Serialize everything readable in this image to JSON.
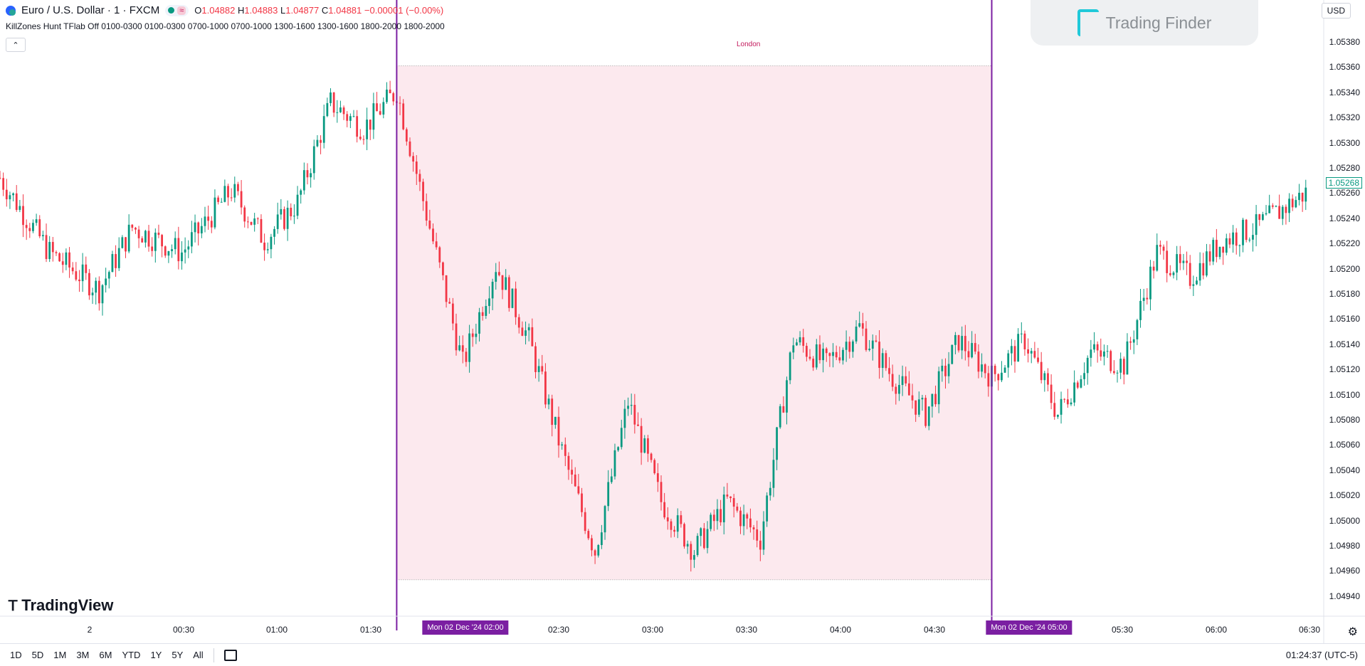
{
  "header": {
    "symbol": "Euro / U.S. Dollar · 1 · FXCM",
    "wave_icon": "≈",
    "ohlc": {
      "o_label": "O",
      "o": "1.04882",
      "h_label": "H",
      "h": "1.04883",
      "l_label": "L",
      "l": "1.04877",
      "c_label": "C",
      "c": "1.04881",
      "change": "−0.00001 (−0.00%)"
    },
    "indicator": "KillZones Hunt TFlab Off 0100-0300 0100-0300 0700-1000 0700-1000 1300-1600 1300-1600 1800-2000 1800-2000",
    "collapse_icon": "⌃"
  },
  "currency": "USD",
  "current_price": "1.05268",
  "price_axis": [
    "1.05380",
    "1.05360",
    "1.05340",
    "1.05320",
    "1.05300",
    "1.05280",
    "1.05260",
    "1.05240",
    "1.05220",
    "1.05200",
    "1.05180",
    "1.05160",
    "1.05140",
    "1.05120",
    "1.05100",
    "1.05080",
    "1.05060",
    "1.05040",
    "1.05020",
    "1.05000",
    "1.04980",
    "1.04960",
    "1.04940"
  ],
  "time_axis": [
    "2",
    "00:30",
    "01:00",
    "01:30",
    "02:30",
    "03:00",
    "03:30",
    "04:00",
    "04:30",
    "05:30",
    "06:00",
    "06:30"
  ],
  "time_tags": [
    "Mon 02 Dec '24   02:00",
    "Mon 02 Dec '24   05:00"
  ],
  "session_label": "London",
  "branding": {
    "tradingview": "TradingView",
    "trading_finder": "Trading Finder"
  },
  "bottom_bar": {
    "timeframes": [
      "1D",
      "5D",
      "1M",
      "3M",
      "6M",
      "YTD",
      "1Y",
      "5Y",
      "All"
    ],
    "clock": "01:24:37 (UTC-5)"
  },
  "colors": {
    "up": "#089981",
    "down": "#f23645",
    "session_fill": "#fce9ee",
    "session_border": "#7b1fa2",
    "session_label": "#c2185b"
  },
  "chart_data": {
    "type": "candlestick",
    "symbol": "EURUSD",
    "y_range": [
      1.0493,
      1.054
    ],
    "x_range": [
      "00:00",
      "06:40"
    ],
    "session": {
      "name": "London",
      "start": "02:00",
      "end": "05:00",
      "high": 1.0537,
      "low": 1.04957
    },
    "close_path": [
      [
        "00:00",
        1.0528
      ],
      [
        "00:15",
        1.0522
      ],
      [
        "00:30",
        1.0519
      ],
      [
        "00:40",
        1.0524
      ],
      [
        "00:55",
        1.0522
      ],
      [
        "01:10",
        1.0527
      ],
      [
        "01:20",
        1.0523
      ],
      [
        "01:30",
        1.0526
      ],
      [
        "01:40",
        1.0534
      ],
      [
        "01:50",
        1.0532
      ],
      [
        "02:00",
        1.0535
      ],
      [
        "02:10",
        1.0524
      ],
      [
        "02:20",
        1.0513
      ],
      [
        "02:30",
        1.0521
      ],
      [
        "02:40",
        1.0515
      ],
      [
        "02:50",
        1.0506
      ],
      [
        "03:00",
        1.0498
      ],
      [
        "03:10",
        1.051
      ],
      [
        "03:20",
        1.0502
      ],
      [
        "03:30",
        1.0498
      ],
      [
        "03:40",
        1.0502
      ],
      [
        "03:50",
        1.0499
      ],
      [
        "04:00",
        1.0515
      ],
      [
        "04:10",
        1.0513
      ],
      [
        "04:20",
        1.0516
      ],
      [
        "04:30",
        1.0512
      ],
      [
        "04:40",
        1.0509
      ],
      [
        "04:50",
        1.0515
      ],
      [
        "05:00",
        1.0512
      ],
      [
        "05:10",
        1.0515
      ],
      [
        "05:20",
        1.0509
      ],
      [
        "05:30",
        1.0514
      ],
      [
        "05:40",
        1.0513
      ],
      [
        "05:50",
        1.0522
      ],
      [
        "06:00",
        1.052
      ],
      [
        "06:10",
        1.0523
      ],
      [
        "06:20",
        1.0524
      ],
      [
        "06:35",
        1.05268
      ]
    ]
  }
}
